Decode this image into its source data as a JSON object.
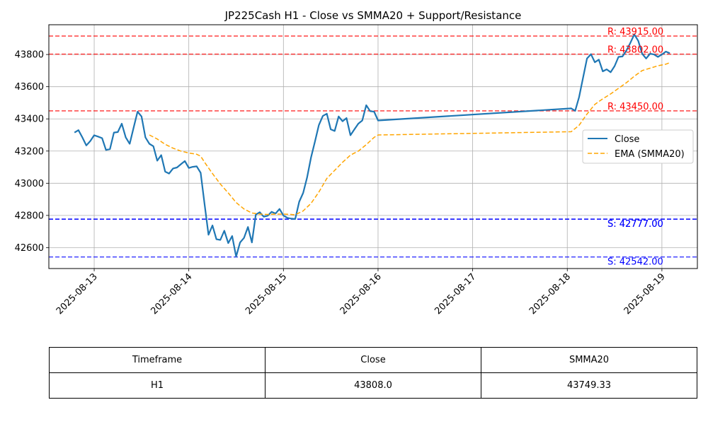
{
  "chart_data": {
    "type": "line",
    "title": "JP225Cash H1 - Close vs SMMA20 + Support/Resistance",
    "xlabel": "",
    "ylabel": "",
    "x_ticks": [
      "2025-08-13",
      "2025-08-14",
      "2025-08-15",
      "2025-08-16",
      "2025-08-17",
      "2025-08-18",
      "2025-08-19"
    ],
    "y_ticks": [
      42600,
      42800,
      43000,
      43200,
      43400,
      43600,
      43800
    ],
    "xlim": [
      "2025-08-12T12:30",
      "2025-08-19T09:00"
    ],
    "ylim": [
      42470,
      43985
    ],
    "grid": true,
    "legend_position": "center-right",
    "series": [
      {
        "name": "Close",
        "color": "#1f77b4",
        "style": "solid",
        "points": [
          [
            "2025-08-12T19:00",
            43315
          ],
          [
            "2025-08-12T20:00",
            43330
          ],
          [
            "2025-08-12T21:00",
            43285
          ],
          [
            "2025-08-12T22:00",
            43235
          ],
          [
            "2025-08-12T23:00",
            43262
          ],
          [
            "2025-08-13T00:00",
            43298
          ],
          [
            "2025-08-13T01:00",
            43290
          ],
          [
            "2025-08-13T02:00",
            43280
          ],
          [
            "2025-08-13T03:00",
            43207
          ],
          [
            "2025-08-13T04:00",
            43212
          ],
          [
            "2025-08-13T05:00",
            43315
          ],
          [
            "2025-08-13T06:00",
            43318
          ],
          [
            "2025-08-13T07:00",
            43370
          ],
          [
            "2025-08-13T08:00",
            43285
          ],
          [
            "2025-08-13T09:00",
            43245
          ],
          [
            "2025-08-13T10:00",
            43345
          ],
          [
            "2025-08-13T11:00",
            43445
          ],
          [
            "2025-08-13T12:00",
            43415
          ],
          [
            "2025-08-13T13:00",
            43285
          ],
          [
            "2025-08-13T14:00",
            43245
          ],
          [
            "2025-08-13T15:00",
            43230
          ],
          [
            "2025-08-13T16:00",
            43140
          ],
          [
            "2025-08-13T17:00",
            43175
          ],
          [
            "2025-08-13T18:00",
            43072
          ],
          [
            "2025-08-13T19:00",
            43060
          ],
          [
            "2025-08-13T20:00",
            43092
          ],
          [
            "2025-08-13T21:00",
            43098
          ],
          [
            "2025-08-13T22:00",
            43118
          ],
          [
            "2025-08-13T23:00",
            43138
          ],
          [
            "2025-08-14T00:00",
            43095
          ],
          [
            "2025-08-14T01:00",
            43102
          ],
          [
            "2025-08-14T02:00",
            43105
          ],
          [
            "2025-08-14T03:00",
            43065
          ],
          [
            "2025-08-14T04:00",
            42868
          ],
          [
            "2025-08-14T05:00",
            42680
          ],
          [
            "2025-08-14T06:00",
            42738
          ],
          [
            "2025-08-14T07:00",
            42652
          ],
          [
            "2025-08-14T08:00",
            42648
          ],
          [
            "2025-08-14T09:00",
            42705
          ],
          [
            "2025-08-14T10:00",
            42628
          ],
          [
            "2025-08-14T11:00",
            42672
          ],
          [
            "2025-08-14T12:00",
            42544
          ],
          [
            "2025-08-14T13:00",
            42632
          ],
          [
            "2025-08-14T14:00",
            42660
          ],
          [
            "2025-08-14T15:00",
            42728
          ],
          [
            "2025-08-14T16:00",
            42632
          ],
          [
            "2025-08-14T17:00",
            42805
          ],
          [
            "2025-08-14T18:00",
            42820
          ],
          [
            "2025-08-14T19:00",
            42792
          ],
          [
            "2025-08-14T20:00",
            42798
          ],
          [
            "2025-08-14T21:00",
            42822
          ],
          [
            "2025-08-14T22:00",
            42812
          ],
          [
            "2025-08-14T23:00",
            42840
          ],
          [
            "2025-08-15T00:00",
            42800
          ],
          [
            "2025-08-15T01:00",
            42785
          ],
          [
            "2025-08-15T02:00",
            42780
          ],
          [
            "2025-08-15T03:00",
            42778
          ],
          [
            "2025-08-15T04:00",
            42885
          ],
          [
            "2025-08-15T05:00",
            42940
          ],
          [
            "2025-08-15T06:00",
            43035
          ],
          [
            "2025-08-15T07:00",
            43160
          ],
          [
            "2025-08-15T08:00",
            43260
          ],
          [
            "2025-08-15T09:00",
            43362
          ],
          [
            "2025-08-15T10:00",
            43418
          ],
          [
            "2025-08-15T11:00",
            43432
          ],
          [
            "2025-08-15T12:00",
            43335
          ],
          [
            "2025-08-15T13:00",
            43325
          ],
          [
            "2025-08-15T14:00",
            43415
          ],
          [
            "2025-08-15T15:00",
            43385
          ],
          [
            "2025-08-15T16:00",
            43405
          ],
          [
            "2025-08-15T17:00",
            43298
          ],
          [
            "2025-08-15T18:00",
            43335
          ],
          [
            "2025-08-15T19:00",
            43370
          ],
          [
            "2025-08-15T20:00",
            43390
          ],
          [
            "2025-08-15T21:00",
            43485
          ],
          [
            "2025-08-15T22:00",
            43448
          ],
          [
            "2025-08-15T23:00",
            43445
          ],
          [
            "2025-08-16T00:00",
            43390
          ],
          [
            "2025-08-18T01:00",
            43465
          ],
          [
            "2025-08-18T02:00",
            43450
          ],
          [
            "2025-08-18T03:00",
            43535
          ],
          [
            "2025-08-18T04:00",
            43655
          ],
          [
            "2025-08-18T05:00",
            43775
          ],
          [
            "2025-08-18T06:00",
            43802
          ],
          [
            "2025-08-18T07:00",
            43752
          ],
          [
            "2025-08-18T08:00",
            43768
          ],
          [
            "2025-08-18T09:00",
            43695
          ],
          [
            "2025-08-18T10:00",
            43708
          ],
          [
            "2025-08-18T11:00",
            43690
          ],
          [
            "2025-08-18T12:00",
            43728
          ],
          [
            "2025-08-18T13:00",
            43785
          ],
          [
            "2025-08-18T14:00",
            43788
          ],
          [
            "2025-08-18T15:00",
            43825
          ],
          [
            "2025-08-18T16:00",
            43872
          ],
          [
            "2025-08-18T17:00",
            43925
          ],
          [
            "2025-08-18T18:00",
            43885
          ],
          [
            "2025-08-18T19:00",
            43805
          ],
          [
            "2025-08-18T20:00",
            43775
          ],
          [
            "2025-08-18T21:00",
            43805
          ],
          [
            "2025-08-18T22:00",
            43800
          ],
          [
            "2025-08-18T23:00",
            43785
          ],
          [
            "2025-08-19T00:00",
            43800
          ],
          [
            "2025-08-19T01:00",
            43818
          ],
          [
            "2025-08-19T02:00",
            43808
          ]
        ]
      },
      {
        "name": "EMA (SMMA20)",
        "color": "#ffa500",
        "style": "dashed",
        "points": [
          [
            "2025-08-13T14:00",
            43300
          ],
          [
            "2025-08-13T16:00",
            43275
          ],
          [
            "2025-08-13T18:00",
            43242
          ],
          [
            "2025-08-13T20:00",
            43218
          ],
          [
            "2025-08-13T22:00",
            43200
          ],
          [
            "2025-08-14T00:00",
            43188
          ],
          [
            "2025-08-14T02:00",
            43180
          ],
          [
            "2025-08-14T03:00",
            43168
          ],
          [
            "2025-08-14T04:00",
            43130
          ],
          [
            "2025-08-14T06:00",
            43060
          ],
          [
            "2025-08-14T08:00",
            42995
          ],
          [
            "2025-08-14T10:00",
            42940
          ],
          [
            "2025-08-14T12:00",
            42880
          ],
          [
            "2025-08-14T14:00",
            42840
          ],
          [
            "2025-08-14T16:00",
            42815
          ],
          [
            "2025-08-14T18:00",
            42808
          ],
          [
            "2025-08-14T20:00",
            42806
          ],
          [
            "2025-08-14T22:00",
            42808
          ],
          [
            "2025-08-15T00:00",
            42808
          ],
          [
            "2025-08-15T02:00",
            42806
          ],
          [
            "2025-08-15T03:00",
            42804
          ],
          [
            "2025-08-15T05:00",
            42828
          ],
          [
            "2025-08-15T07:00",
            42875
          ],
          [
            "2025-08-15T09:00",
            42945
          ],
          [
            "2025-08-15T11:00",
            43030
          ],
          [
            "2025-08-15T13:00",
            43080
          ],
          [
            "2025-08-15T15:00",
            43130
          ],
          [
            "2025-08-15T17:00",
            43175
          ],
          [
            "2025-08-15T19:00",
            43200
          ],
          [
            "2025-08-15T21:00",
            43240
          ],
          [
            "2025-08-15T23:00",
            43285
          ],
          [
            "2025-08-16T00:00",
            43300
          ],
          [
            "2025-08-18T01:00",
            43320
          ],
          [
            "2025-08-18T03:00",
            43360
          ],
          [
            "2025-08-18T05:00",
            43430
          ],
          [
            "2025-08-18T07:00",
            43490
          ],
          [
            "2025-08-18T09:00",
            43525
          ],
          [
            "2025-08-18T11:00",
            43555
          ],
          [
            "2025-08-18T13:00",
            43590
          ],
          [
            "2025-08-18T15:00",
            43625
          ],
          [
            "2025-08-18T17:00",
            43665
          ],
          [
            "2025-08-18T19:00",
            43700
          ],
          [
            "2025-08-18T21:00",
            43715
          ],
          [
            "2025-08-18T23:00",
            43730
          ],
          [
            "2025-08-19T01:00",
            43740
          ],
          [
            "2025-08-19T02:00",
            43749
          ]
        ]
      }
    ],
    "levels": [
      {
        "kind": "resistance",
        "value": 43915,
        "label": "R: 43915.00",
        "color": "#ff0000"
      },
      {
        "kind": "resistance",
        "value": 43802,
        "label": "R: 43802.00",
        "color": "#ff0000"
      },
      {
        "kind": "resistance",
        "value": 43450,
        "label": "R: 43450.00",
        "color": "#ff0000"
      },
      {
        "kind": "support",
        "value": 42777,
        "label": "S: 42777.00",
        "color": "#0000ff"
      },
      {
        "kind": "support",
        "value": 42777,
        "label": "S: 42777.00",
        "color": "#0000ff"
      },
      {
        "kind": "support",
        "value": 42542,
        "label": "S: 42542.00",
        "color": "#0000ff"
      }
    ],
    "table": {
      "headers": [
        "Timeframe",
        "Close",
        "SMMA20"
      ],
      "rows": [
        [
          "H1",
          "43808.0",
          "43749.33"
        ]
      ]
    }
  }
}
